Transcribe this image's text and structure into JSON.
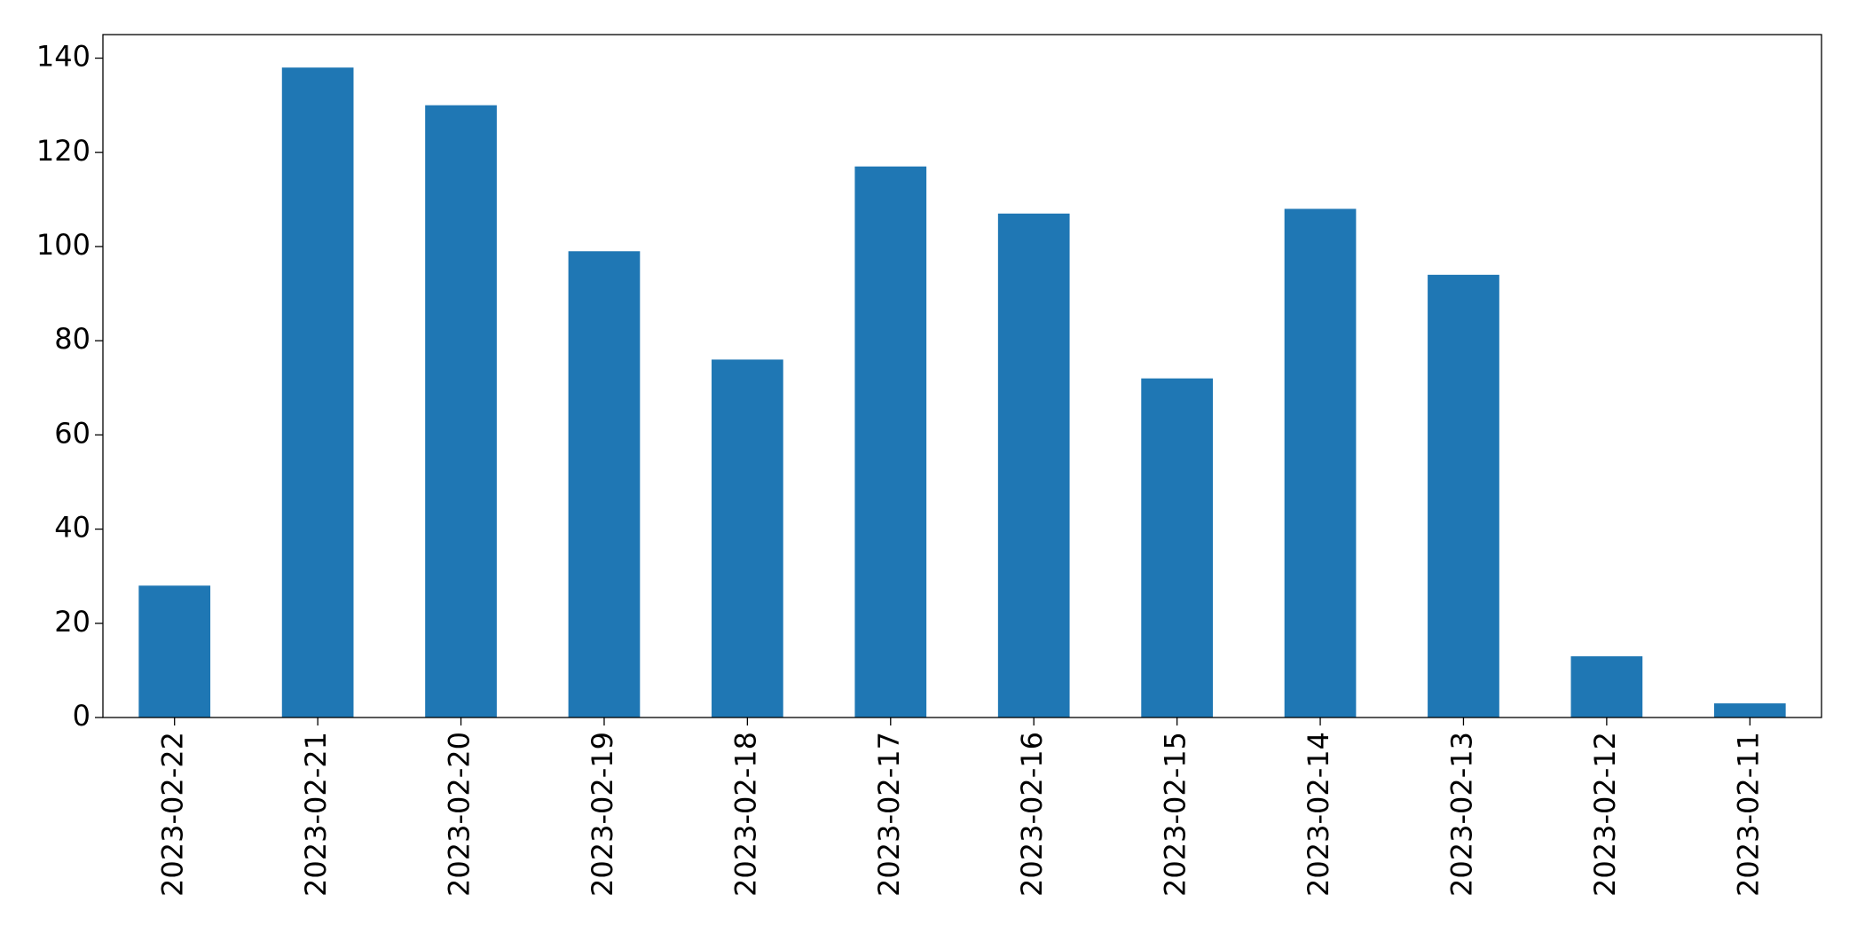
{
  "chart_data": {
    "type": "bar",
    "categories": [
      "2023-02-22",
      "2023-02-21",
      "2023-02-20",
      "2023-02-19",
      "2023-02-18",
      "2023-02-17",
      "2023-02-16",
      "2023-02-15",
      "2023-02-14",
      "2023-02-13",
      "2023-02-12",
      "2023-02-11"
    ],
    "values": [
      28,
      138,
      130,
      99,
      76,
      117,
      107,
      72,
      108,
      94,
      13,
      3
    ],
    "color": "#1f77b4",
    "ylim": [
      0,
      145
    ],
    "yticks": [
      0,
      20,
      40,
      60,
      80,
      100,
      120,
      140
    ],
    "grid": false
  }
}
